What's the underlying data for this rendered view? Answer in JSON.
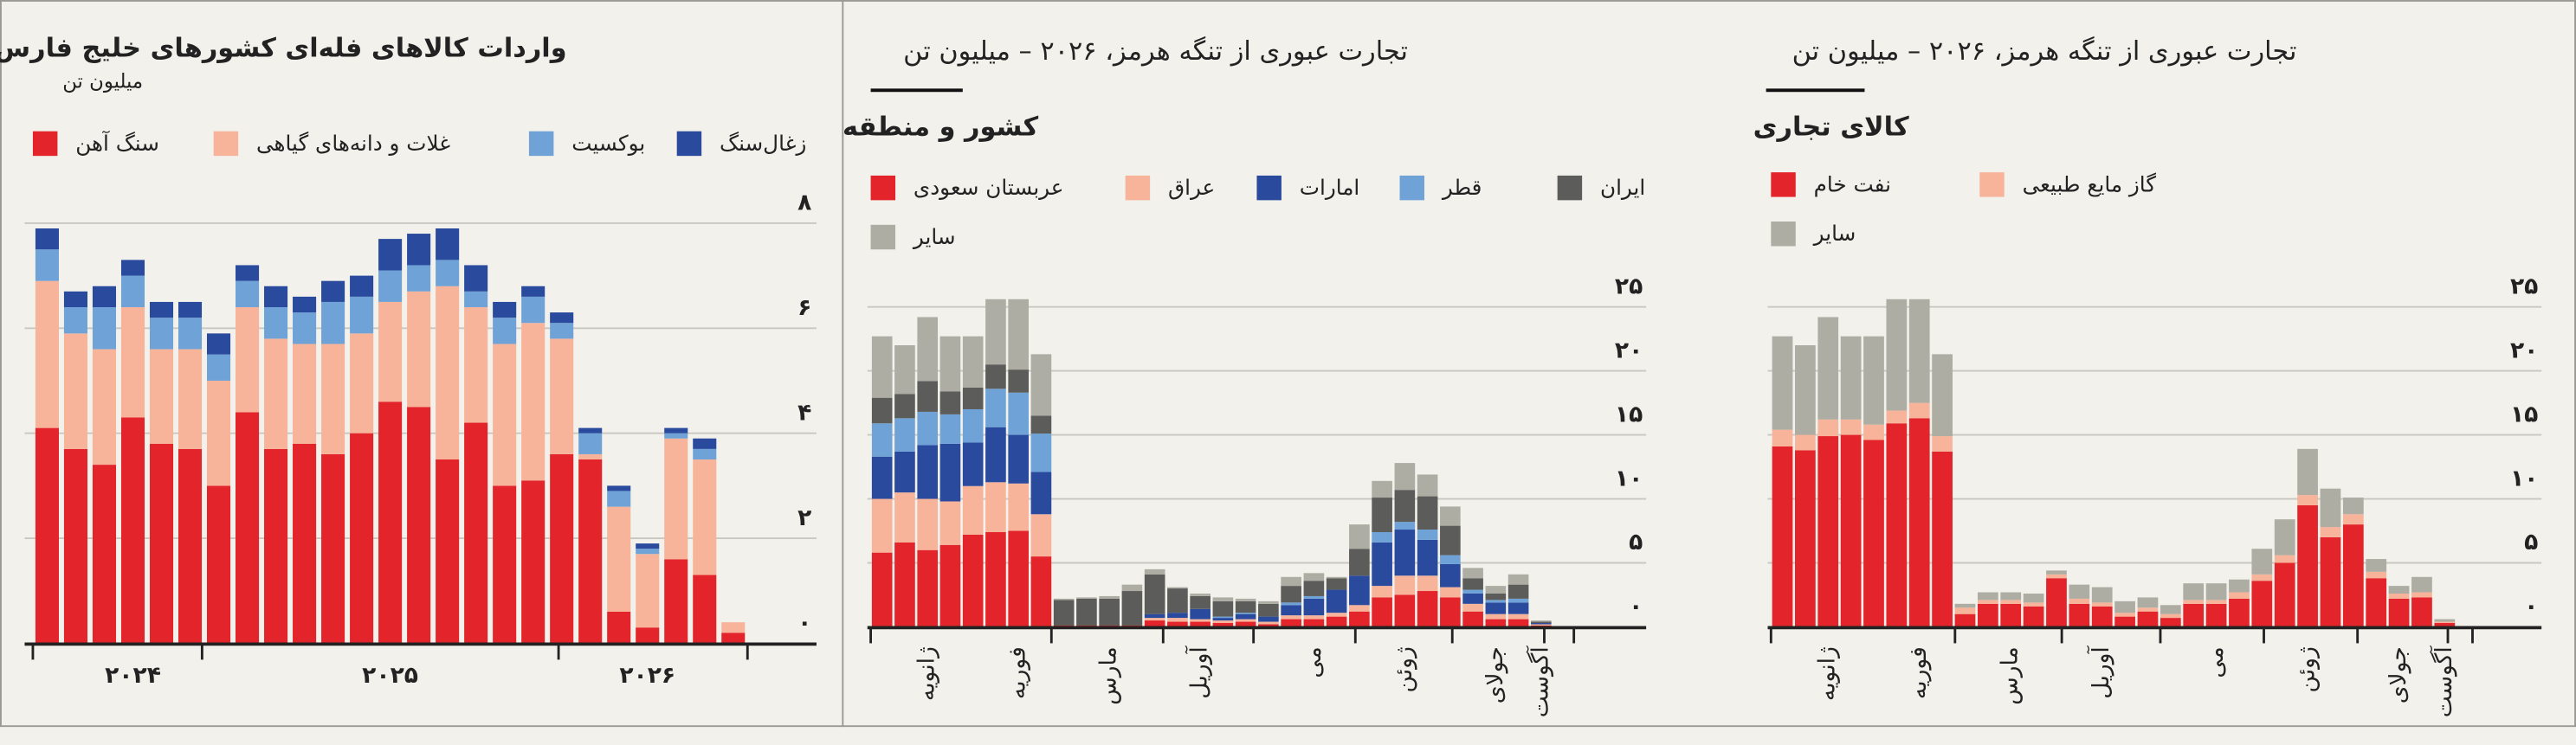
{
  "chart_data": [
    {
      "type": "bar",
      "stacked": true,
      "grid": true,
      "title": "واردات کالاهای فله‌ای کشورهای خلیج فارس",
      "subtitle": "میلیون تن",
      "categories": [
        null,
        null,
        null,
        "۲۰۲۴",
        null,
        null,
        null,
        null,
        null,
        null,
        null,
        null,
        "۲۰۲۵",
        null,
        null,
        null,
        null,
        null,
        null,
        null,
        null,
        "۲۰۲۶",
        null,
        null,
        null
      ],
      "series": [
        {
          "name": "سنگ آهن",
          "color": "#e3242b",
          "values": [
            4.1,
            3.7,
            3.4,
            4.3,
            3.8,
            3.7,
            3.0,
            4.4,
            3.7,
            3.8,
            3.6,
            4.0,
            4.6,
            4.5,
            3.5,
            4.2,
            3.0,
            3.1,
            3.6,
            3.5,
            0.6,
            0.3,
            1.6,
            1.3,
            0.2
          ]
        },
        {
          "name": "غلات و دانه‌های گیاهی",
          "color": "#f7b49b",
          "values": [
            2.8,
            2.2,
            2.2,
            2.1,
            1.8,
            1.9,
            2.0,
            2.0,
            2.1,
            1.9,
            2.1,
            1.9,
            1.9,
            2.2,
            3.3,
            2.2,
            2.7,
            3.0,
            2.2,
            0.1,
            2.0,
            1.4,
            2.3,
            2.2,
            0.2
          ]
        },
        {
          "name": "بوکسیت",
          "color": "#6fa3d8",
          "values": [
            0.6,
            0.5,
            0.8,
            0.6,
            0.6,
            0.6,
            0.5,
            0.5,
            0.6,
            0.6,
            0.8,
            0.7,
            0.6,
            0.5,
            0.5,
            0.3,
            0.5,
            0.5,
            0.3,
            0.4,
            0.3,
            0.1,
            0.1,
            0.2,
            0
          ]
        },
        {
          "name": "زغال‌سنگ",
          "color": "#2a4a9e",
          "values": [
            0.4,
            0.3,
            0.4,
            0.3,
            0.3,
            0.3,
            0.4,
            0.3,
            0.4,
            0.3,
            0.4,
            0.4,
            0.6,
            0.6,
            0.6,
            0.5,
            0.3,
            0.2,
            0.2,
            0.1,
            0.1,
            0.1,
            0.1,
            0.2,
            0
          ]
        }
      ],
      "ylim": [
        0,
        8
      ],
      "yticks": [
        {
          "value": 0,
          "label": "۰"
        },
        {
          "value": 2,
          "label": "۲"
        },
        {
          "value": 4,
          "label": "۴"
        },
        {
          "value": 6,
          "label": "۶"
        },
        {
          "value": 8,
          "label": "۸"
        }
      ]
    },
    {
      "type": "bar",
      "stacked": true,
      "grid": true,
      "title": "تجارت عبوری از تنگه هرمز، ۲۰۲۶ – میلیون تن",
      "legend_title": "کشور و منطقه",
      "categories": [
        null,
        null,
        "ژانویه",
        null,
        null,
        null,
        "فوریه",
        null,
        null,
        null,
        "مارس",
        null,
        null,
        null,
        "آوریل",
        null,
        null,
        null,
        null,
        "می",
        null,
        null,
        null,
        "ژوئن",
        null,
        null,
        null,
        "جولای",
        null,
        "آگوست"
      ],
      "series": [
        {
          "name": "عربستان سعودی",
          "color": "#e3242b",
          "values": [
            5.8,
            6.6,
            6.0,
            6.4,
            7.2,
            7.4,
            7.5,
            5.5,
            0.1,
            0.1,
            0.1,
            0.1,
            0.5,
            0.4,
            0.4,
            0.3,
            0.4,
            0.2,
            0.6,
            0.6,
            0.8,
            1.2,
            2.3,
            2.5,
            2.8,
            2.3,
            1.2,
            0.6,
            0.6,
            0.1
          ]
        },
        {
          "name": "عراق",
          "color": "#f7b49b",
          "values": [
            4.2,
            3.9,
            4.0,
            3.4,
            3.8,
            3.9,
            3.7,
            3.3,
            0,
            0,
            0,
            0,
            0.2,
            0.3,
            0.2,
            0.2,
            0.2,
            0.2,
            0.3,
            0.3,
            0.3,
            0.5,
            0.9,
            1.5,
            1.2,
            0.8,
            0.6,
            0.4,
            0.4,
            0.1
          ]
        },
        {
          "name": "امارات",
          "color": "#2a4a9e",
          "values": [
            3.3,
            3.2,
            4.2,
            4.5,
            3.4,
            4.3,
            3.8,
            3.3,
            0,
            0,
            0,
            0,
            0.3,
            0.4,
            0.8,
            0.2,
            0.4,
            0.4,
            0.8,
            1.3,
            1.8,
            2.3,
            3.4,
            3.6,
            2.8,
            1.8,
            0.8,
            0.9,
            0.9,
            0.1
          ]
        },
        {
          "name": "قطر",
          "color": "#6fa3d8",
          "values": [
            2.6,
            2.6,
            2.6,
            2.3,
            2.6,
            3.0,
            3.3,
            3.0,
            0,
            0,
            0,
            0,
            0,
            0,
            0,
            0.1,
            0.1,
            0,
            0.2,
            0.2,
            0,
            0,
            0.8,
            0.6,
            0.8,
            0.7,
            0.3,
            0.2,
            0.3,
            0
          ]
        },
        {
          "name": "ایران",
          "color": "#5c5c5a",
          "values": [
            2.0,
            1.9,
            2.4,
            1.8,
            1.7,
            1.9,
            1.8,
            1.4,
            2.0,
            2.1,
            2.1,
            2.7,
            3.1,
            1.9,
            1.0,
            1.2,
            0.9,
            1.0,
            1.3,
            1.2,
            0.9,
            2.1,
            2.7,
            2.5,
            2.6,
            2.3,
            0.9,
            0.5,
            1.1,
            0.1
          ]
        },
        {
          "name": "سایر",
          "color": "#adada3",
          "values": [
            4.8,
            3.8,
            5.0,
            4.3,
            4.0,
            5.1,
            5.5,
            4.8,
            0.1,
            0.1,
            0.2,
            0.5,
            0.4,
            0.1,
            0.2,
            0.3,
            0.2,
            0.2,
            0.7,
            0.6,
            0.1,
            1.9,
            1.3,
            2.1,
            1.7,
            1.5,
            0.8,
            0.6,
            0.8,
            0.1
          ]
        }
      ],
      "ylim": [
        0,
        25
      ],
      "yticks": [
        {
          "value": 0,
          "label": "۰"
        },
        {
          "value": 5,
          "label": "۵"
        },
        {
          "value": 10,
          "label": "۱۰"
        },
        {
          "value": 15,
          "label": "۱۵"
        },
        {
          "value": 20,
          "label": "۲۰"
        },
        {
          "value": 25,
          "label": "۲۵"
        }
      ]
    },
    {
      "type": "bar",
      "stacked": true,
      "grid": true,
      "title": "تجارت عبوری از تنگه هرمز، ۲۰۲۶ – میلیون تن",
      "legend_title": "کالای تجاری",
      "categories": [
        null,
        null,
        "ژانویه",
        null,
        null,
        null,
        "فوریه",
        null,
        null,
        null,
        "مارس",
        null,
        null,
        null,
        "آوریل",
        null,
        null,
        null,
        null,
        "می",
        null,
        null,
        null,
        "ژوئن",
        null,
        null,
        null,
        "جولای",
        null,
        "آگوست"
      ],
      "series": [
        {
          "name": "نفت خام",
          "color": "#e3242b",
          "values": [
            14.1,
            13.8,
            14.9,
            15.0,
            14.6,
            15.9,
            16.3,
            13.7,
            1.0,
            1.8,
            1.8,
            1.6,
            3.8,
            1.8,
            1.6,
            0.8,
            1.2,
            0.7,
            1.8,
            1.8,
            2.2,
            3.6,
            5.0,
            9.5,
            7.0,
            8.0,
            3.8,
            2.2,
            2.3,
            0.3
          ]
        },
        {
          "name": "گاز مایع طبیعی",
          "color": "#f7b49b",
          "values": [
            1.3,
            1.2,
            1.3,
            1.2,
            1.2,
            1.0,
            1.2,
            1.2,
            0.5,
            0.3,
            0.3,
            0.3,
            0.3,
            0.4,
            0.3,
            0.3,
            0.3,
            0.3,
            0.3,
            0.3,
            0.5,
            0.5,
            0.6,
            0.8,
            0.8,
            0.8,
            0.5,
            0.4,
            0.4,
            0.1
          ]
        },
        {
          "name": "سایر",
          "color": "#adada3",
          "values": [
            7.3,
            7.0,
            8.0,
            6.5,
            6.9,
            8.7,
            8.1,
            6.4,
            0.3,
            0.6,
            0.6,
            0.7,
            0.3,
            1.1,
            1.2,
            0.9,
            0.8,
            0.7,
            1.3,
            1.3,
            1.0,
            2.0,
            2.8,
            3.6,
            3.0,
            1.3,
            1.0,
            0.6,
            1.2,
            0.2
          ]
        }
      ],
      "ylim": [
        0,
        25
      ],
      "yticks": [
        {
          "value": 0,
          "label": "۰"
        },
        {
          "value": 5,
          "label": "۵"
        },
        {
          "value": 10,
          "label": "۱۰"
        },
        {
          "value": 15,
          "label": "۱۵"
        },
        {
          "value": 20,
          "label": "۲۰"
        },
        {
          "value": 25,
          "label": "۲۵"
        }
      ]
    }
  ]
}
